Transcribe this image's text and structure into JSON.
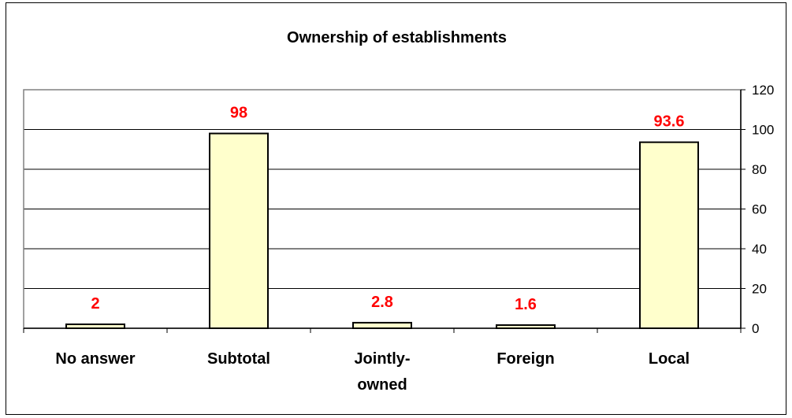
{
  "chart_data": {
    "type": "bar",
    "title": "Ownership of establishments",
    "categories": [
      "No answer",
      "Subtotal",
      "Jointly-owned",
      "Foreign",
      "Local"
    ],
    "category_lines": [
      [
        "No answer"
      ],
      [
        "Subtotal"
      ],
      [
        "Jointly-",
        "owned"
      ],
      [
        "Foreign"
      ],
      [
        "Local"
      ]
    ],
    "values": [
      2,
      98,
      2.8,
      1.6,
      93.6
    ],
    "value_labels": [
      "2",
      "98",
      "2.8",
      "1.6",
      "93.6"
    ],
    "ylim": [
      0,
      120
    ],
    "yticks": [
      0,
      20,
      40,
      60,
      80,
      100,
      120
    ],
    "y_axis_side": "right",
    "grid": true,
    "colors": {
      "bar_fill": "#ffffcc",
      "bar_stroke": "#000000",
      "data_label": "#ff0000",
      "plot_border": "#808080"
    }
  }
}
